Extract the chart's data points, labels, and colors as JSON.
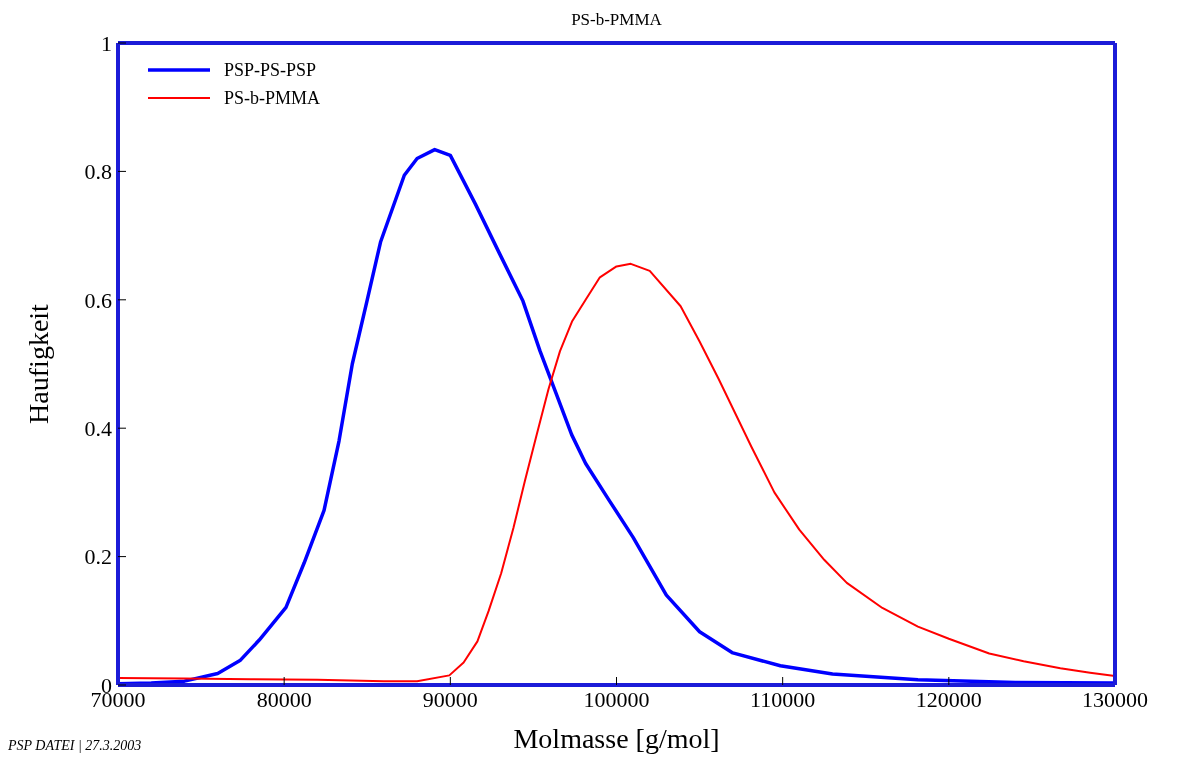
{
  "chart_data": {
    "type": "line",
    "title": "PS-b-PMMA",
    "xlabel": "Molmasse [g/mol]",
    "ylabel": "Haufigkeit",
    "annotations": [
      "PSP DATEI | 27.3.2003"
    ],
    "xlim": [
      70000,
      130000
    ],
    "xticks": [
      70000,
      80000,
      90000,
      100000,
      110000,
      120000,
      130000
    ],
    "ylim": [
      0,
      1
    ],
    "yticks": [
      0,
      0.2,
      0.4,
      0.6,
      0.8,
      1
    ],
    "legend": "top left",
    "marker": "none",
    "line_style": "solid",
    "series": [
      {
        "name": "PSP-PS-PSP",
        "color": "#0000ff",
        "x": [
          70000,
          72000,
          74000,
          76000,
          77340,
          78500,
          80110,
          81200,
          82400,
          83300,
          84100,
          85000,
          85800,
          87230,
          88000,
          89060,
          90000,
          91510,
          93000,
          94370,
          95400,
          96370,
          97300,
          98143,
          99500,
          101000,
          103000,
          105000,
          107000,
          109860,
          113000,
          118140,
          124000,
          130000
        ],
        "values": [
          0.002,
          0.003,
          0.006,
          0.018,
          0.038,
          0.07,
          0.121,
          0.19,
          0.272,
          0.38,
          0.5,
          0.6,
          0.69,
          0.794,
          0.82,
          0.834,
          0.825,
          0.749,
          0.67,
          0.598,
          0.52,
          0.454,
          0.39,
          0.345,
          0.29,
          0.23,
          0.14,
          0.083,
          0.05,
          0.03,
          0.017,
          0.008,
          0.004,
          0.003
        ]
      },
      {
        "name": "PS-b-PMMA",
        "color": "#ff0000",
        "x": [
          70000,
          74000,
          78000,
          82000,
          86000,
          88000,
          89940,
          90800,
          91630,
          92300,
          93060,
          93800,
          94490,
          95200,
          95910,
          96600,
          97340,
          98143,
          99000,
          100000,
          100860,
          102000,
          103860,
          105000,
          106140,
          108140,
          109500,
          111000,
          112500,
          113860,
          116000,
          118140,
          120000,
          122430,
          124500,
          126710,
          128500,
          130000
        ],
        "values": [
          0.011,
          0.01,
          0.009,
          0.008,
          0.006,
          0.006,
          0.015,
          0.035,
          0.068,
          0.115,
          0.174,
          0.245,
          0.318,
          0.39,
          0.461,
          0.52,
          0.567,
          0.6,
          0.635,
          0.652,
          0.656,
          0.645,
          0.59,
          0.535,
          0.477,
          0.37,
          0.3,
          0.242,
          0.195,
          0.159,
          0.12,
          0.091,
          0.072,
          0.049,
          0.037,
          0.026,
          0.019,
          0.014
        ]
      }
    ]
  }
}
